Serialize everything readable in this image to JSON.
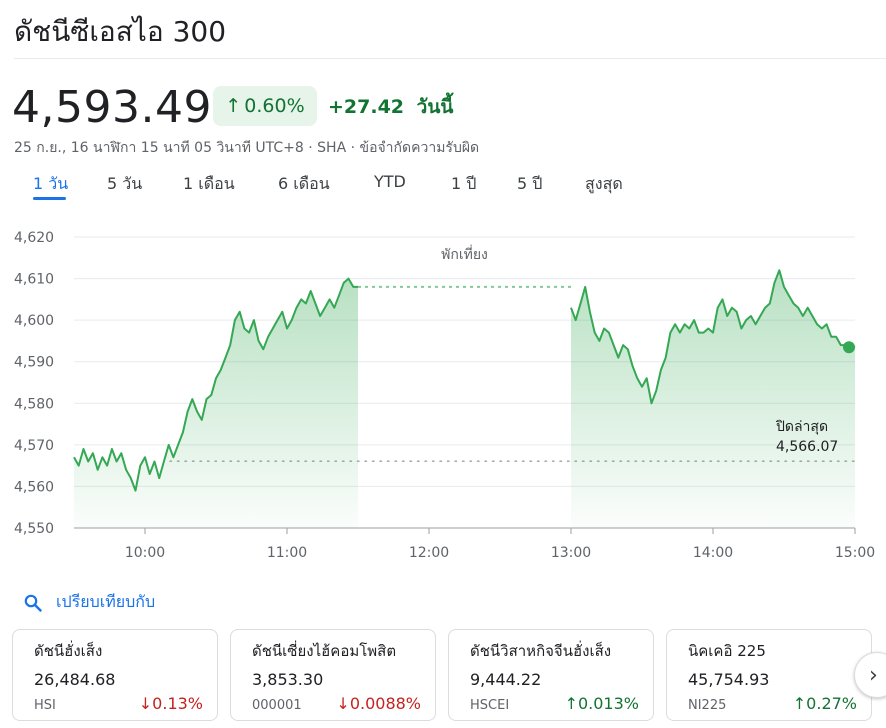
{
  "header": {
    "title": "ดัชนีซีเอสไอ 300",
    "price": "4,593.49",
    "change_pct": "0.60%",
    "change_abs": "+27.42",
    "change_period": "วันนี้",
    "meta": "25 ก.ย., 16 นาฬิกา 15 นาที 05 วินาที UTC+8 · SHA · ข้อจำกัดความรับผิด"
  },
  "tabs": [
    "1 วัน",
    "5 วัน",
    "1 เดือน",
    "6 เดือน",
    "YTD",
    "1 ปี",
    "5 ปี",
    "สูงสุด"
  ],
  "active_tab": "1 วัน",
  "colors": {
    "up": "#137333",
    "down": "#c5221f",
    "line": "#34a853",
    "accent": "#1a73e8"
  },
  "chart_data": {
    "type": "area",
    "ylim": [
      4550,
      4620
    ],
    "yticks": [
      "4,620",
      "4,610",
      "4,600",
      "4,590",
      "4,580",
      "4,570",
      "4,560",
      "4,550"
    ],
    "xticks": [
      "10:00",
      "11:00",
      "12:00",
      "13:00",
      "14:00",
      "15:00"
    ],
    "x_unit": "time",
    "lunch_label": "พักเที่ยง",
    "lunch_start": "11:30",
    "lunch_end": "13:00",
    "lunch_level": 4608,
    "prev_close_label": "ปิดล่าสุด",
    "prev_close_value": "4,566.07",
    "prev_close": 4566.07,
    "last_value": 4593.49,
    "morning": [
      [
        "09:30",
        4567
      ],
      [
        "09:32",
        4565
      ],
      [
        "09:34",
        4569
      ],
      [
        "09:36",
        4566
      ],
      [
        "09:38",
        4568
      ],
      [
        "09:40",
        4564
      ],
      [
        "09:42",
        4567
      ],
      [
        "09:44",
        4565
      ],
      [
        "09:46",
        4569
      ],
      [
        "09:48",
        4566
      ],
      [
        "09:50",
        4568
      ],
      [
        "09:52",
        4564
      ],
      [
        "09:54",
        4562
      ],
      [
        "09:56",
        4559
      ],
      [
        "09:58",
        4565
      ],
      [
        "10:00",
        4567
      ],
      [
        "10:02",
        4563
      ],
      [
        "10:04",
        4566
      ],
      [
        "10:06",
        4562
      ],
      [
        "10:08",
        4566
      ],
      [
        "10:10",
        4570
      ],
      [
        "10:12",
        4567
      ],
      [
        "10:14",
        4570
      ],
      [
        "10:16",
        4573
      ],
      [
        "10:18",
        4578
      ],
      [
        "10:20",
        4581
      ],
      [
        "10:22",
        4578
      ],
      [
        "10:24",
        4576
      ],
      [
        "10:26",
        4581
      ],
      [
        "10:28",
        4582
      ],
      [
        "10:30",
        4586
      ],
      [
        "10:32",
        4588
      ],
      [
        "10:34",
        4591
      ],
      [
        "10:36",
        4594
      ],
      [
        "10:38",
        4600
      ],
      [
        "10:40",
        4602
      ],
      [
        "10:42",
        4598
      ],
      [
        "10:44",
        4597
      ],
      [
        "10:46",
        4600
      ],
      [
        "10:48",
        4595
      ],
      [
        "10:50",
        4593
      ],
      [
        "10:52",
        4596
      ],
      [
        "10:54",
        4598
      ],
      [
        "10:56",
        4600
      ],
      [
        "10:58",
        4602
      ],
      [
        "11:00",
        4598
      ],
      [
        "11:02",
        4600
      ],
      [
        "11:04",
        4603
      ],
      [
        "11:06",
        4605
      ],
      [
        "11:08",
        4604
      ],
      [
        "11:10",
        4607
      ],
      [
        "11:12",
        4604
      ],
      [
        "11:14",
        4601
      ],
      [
        "11:16",
        4603
      ],
      [
        "11:18",
        4605
      ],
      [
        "11:20",
        4603
      ],
      [
        "11:22",
        4606
      ],
      [
        "11:24",
        4609
      ],
      [
        "11:26",
        4610
      ],
      [
        "11:28",
        4608
      ],
      [
        "11:30",
        4608
      ]
    ],
    "afternoon": [
      [
        "13:00",
        4603
      ],
      [
        "13:02",
        4600
      ],
      [
        "13:04",
        4604
      ],
      [
        "13:06",
        4608
      ],
      [
        "13:08",
        4602
      ],
      [
        "13:10",
        4597
      ],
      [
        "13:12",
        4595
      ],
      [
        "13:14",
        4598
      ],
      [
        "13:16",
        4597
      ],
      [
        "13:18",
        4594
      ],
      [
        "13:20",
        4591
      ],
      [
        "13:22",
        4594
      ],
      [
        "13:24",
        4593
      ],
      [
        "13:26",
        4589
      ],
      [
        "13:28",
        4586
      ],
      [
        "13:30",
        4584
      ],
      [
        "13:32",
        4586
      ],
      [
        "13:34",
        4580
      ],
      [
        "13:36",
        4583
      ],
      [
        "13:38",
        4588
      ],
      [
        "13:40",
        4591
      ],
      [
        "13:42",
        4597
      ],
      [
        "13:44",
        4599
      ],
      [
        "13:46",
        4597
      ],
      [
        "13:48",
        4599
      ],
      [
        "13:50",
        4598
      ],
      [
        "13:52",
        4600
      ],
      [
        "13:54",
        4597
      ],
      [
        "13:56",
        4597
      ],
      [
        "13:58",
        4598
      ],
      [
        "14:00",
        4597
      ],
      [
        "14:02",
        4603
      ],
      [
        "14:04",
        4605
      ],
      [
        "14:06",
        4601
      ],
      [
        "14:08",
        4603
      ],
      [
        "14:10",
        4602
      ],
      [
        "14:12",
        4598
      ],
      [
        "14:14",
        4600
      ],
      [
        "14:16",
        4601
      ],
      [
        "14:18",
        4599
      ],
      [
        "14:20",
        4601
      ],
      [
        "14:22",
        4603
      ],
      [
        "14:24",
        4604
      ],
      [
        "14:26",
        4609
      ],
      [
        "14:28",
        4612
      ],
      [
        "14:30",
        4608
      ],
      [
        "14:32",
        4606
      ],
      [
        "14:34",
        4604
      ],
      [
        "14:36",
        4603
      ],
      [
        "14:38",
        4601
      ],
      [
        "14:40",
        4603
      ],
      [
        "14:42",
        4601
      ],
      [
        "14:44",
        4599
      ],
      [
        "14:46",
        4598
      ],
      [
        "14:48",
        4599
      ],
      [
        "14:50",
        4596
      ],
      [
        "14:52",
        4596
      ],
      [
        "14:54",
        4594
      ],
      [
        "14:56",
        4594
      ],
      [
        "14:58",
        4594
      ],
      [
        "15:00",
        4593.49
      ]
    ]
  },
  "compare": {
    "label": "เปรียบเทียบกับ"
  },
  "cards": [
    {
      "name": "ดัชนีฮั่งเส็ง",
      "price": "26,484.68",
      "symbol": "HSI",
      "change": "0.13%",
      "direction": "down"
    },
    {
      "name": "ดัชนีเซี่ยงไฮ้คอมโพสิต",
      "price": "3,853.30",
      "symbol": "000001",
      "change": "0.0088%",
      "direction": "down"
    },
    {
      "name": "ดัชนีวิสาหกิจจีนฮั่งเส็ง",
      "price": "9,444.22",
      "symbol": "HSCEI",
      "change": "0.013%",
      "direction": "up"
    },
    {
      "name": "นิคเคอิ 225",
      "price": "45,754.93",
      "symbol": "NI225",
      "change": "0.27%",
      "direction": "up"
    }
  ]
}
